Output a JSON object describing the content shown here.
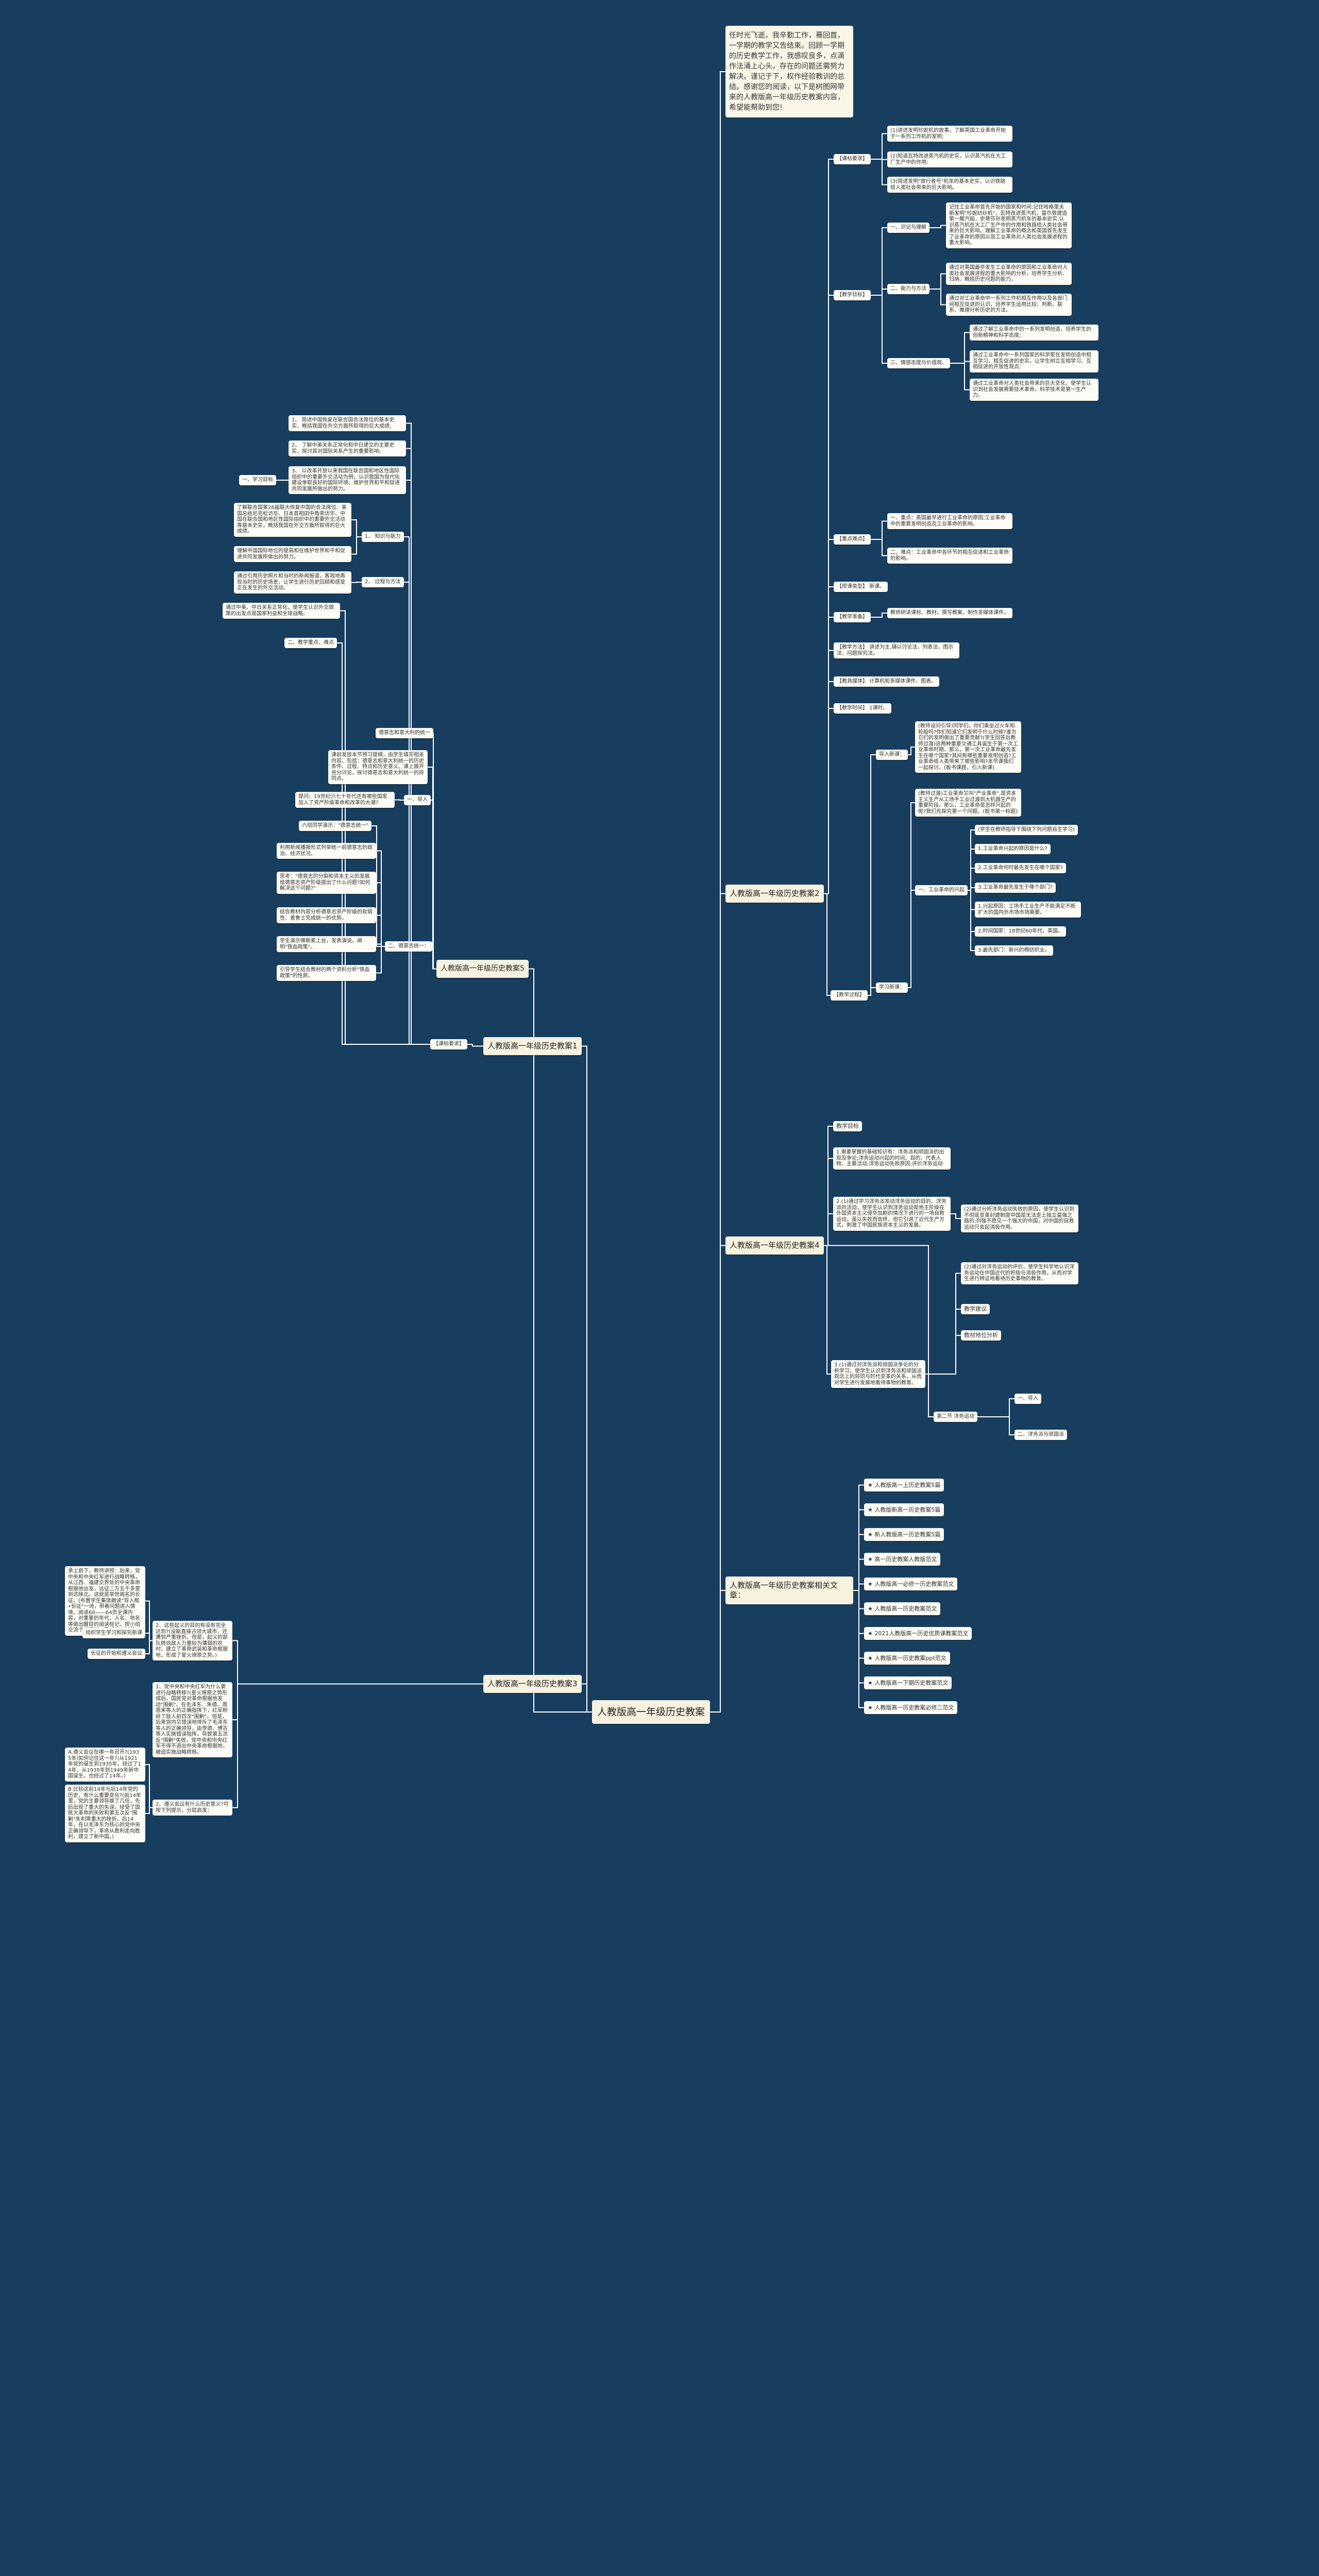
{
  "colors": {
    "background": "#183e5f",
    "node": "#fdfcf6",
    "main_node": "#f7f2e0",
    "line": "#ffffff"
  },
  "nodes": {
    "center": "人教版高一年级历史教案",
    "intro": "任时光飞逝，我辛勤工作，蓦回首，一学期的教学又告结束。回顾一学期的历史教学工作，我感叹良多，点滴作法涌上心头，存在的问题还需努力解决。谨记于下，权作经验教训的总结。感谢您的阅读，以下是树图网带来的人教版高一年级历史教案内容，希望能帮助到您!",
    "b1": "人教版高一年级历史教案1",
    "b2": "人教版高一年级历史教案2",
    "b3": "人教版高一年级历史教案3",
    "b4": "人教版高一年级历史教案4",
    "b5": "人教版高一年级历史教案5",
    "brel": "人教版高一年级历史教案相关文章：",
    "k1": "【课标要求】",
    "k1a": "(1)讲述发明珍妮机的故事，了解英国工业革命开始于一系列工作机的发明;",
    "k1b": "(2)知道瓦特改进蒸汽机的史实，认识蒸汽机在大工厂生产中的作用;",
    "k1c": "(3)简述发明\"旅行者号\"机车的基本史实，认识铁路给人类社会带来的巨大影响。",
    "k2": "【教学目标】",
    "k2a": "一、识记与理解",
    "k2a1": "记住工业革命首先开始的国家和时间;记住哈格里夫斯发明\"珍妮纺纱机\"，瓦特改进蒸汽机，富尔敦建造第一艘汽船，史蒂芬孙发明蒸汽机车的基本史实;认识蒸汽机在大工厂生产中的作用和铁路给人类社会带来的巨大影响。理解工业革命的概念和英国首先发生了业革命的原因以及工业革命对人类社会发展进程的重大影响。",
    "k2b": "二、能力与方法",
    "k2b1": "通过对英国最早发生工业革命的原因和工业革命对人类社会发展进程的重大影响的分析，培养学生分析、归纳、概括历史问题的能力。",
    "k2b2": "通过对工业革命中一系列工作机相互作用以及各部门间相互促进的认识，培养学生运用比较、判断、联系、推理分析历史的方法。",
    "k2c": "三、情感态度与价值观、",
    "k2c1": "通过了解工业革命中的一系列发明创造，培养学生的创新精神和科学态度;",
    "k2c2": "通过工业革命中一系列国家的科学家在发明创造中相互学习，相互促进的史实，让学生树立互相学习、互相促进的开放性观点;",
    "k2c3": "通过工业革命对人类社会带来的巨大变化，使学生认识到社会发展需要技术革命，科学技术是第一生产力。",
    "k3": "【重点难点】",
    "k3a": "一、重点：英国最早进行工业革命的原因;工业革命中的重要发明创造及工业革命的影响。",
    "k3b": "二、难点：工业革命中各环节的相互促进和工业革命的影响。",
    "k4": "【授课类型】 新课。",
    "k5": "【教学准备】",
    "k5a": "教师研读课标、教材，撰写教案，制作多媒体课件。",
    "k6": "【教学方法】 讲述为主,辅以讨论法、列表法、图示法、问题探究法。",
    "k7": "【教具媒体】 计算机和多媒体课件、图表。",
    "k8": "【教学时间】 1课时。",
    "k9": "【教学过程】",
    "k9a": "导入新课：",
    "k9a1": "(教师设问引导)同学们，你们乘坐过火车和轮船吗?你们知道它们发明于什么时候?谁为它们的发明做出了重要贡献?(学生回答后教师过渡)这两种重要交通工具诞生于第一次工业革命时期。那么，第一次工业革命最先发生在哪个国家?其间有哪些重要发明创造?工业革命给人类带来了哪些影响?本节课我们一起探讨。(板书课题，引入新课)",
    "k9b": "学习新课：",
    "k9b1": "(教师过渡)工业革命又叫\"产业革命\",是资本主义生产从工场手工业过渡到大机器生产的重要阶段。那么，工业革命是怎样兴起的呢?我们先探究第一个问题。(板书第一标题)",
    "k9b2": "一、工业革命的兴起",
    "q0": "(学生在教师指导下围绕下列问题自主学习)",
    "q1": "1.工业革命兴起的原因是什么?",
    "q2": "2.工业革命何时最先发生在哪个国家?",
    "q3": "3.工业革命最先发生于哪个部门?",
    "a1": "1.兴起原因：工场手工业生产不能满足不断扩大的国内外市场市场需要。",
    "a2": "2.时间国家：18世纪60年代，英国。",
    "a3": "3.最先部门：新兴的棉纺织业。",
    "m1": "教学目标",
    "m2": "1.需要掌握的基础知识有：洋务派和顽固派的出现及争论;洋务运动兴起的时间、目的、代表人物、主要活动;洋务运动失败原因;评价洋务运动",
    "m3": "2.(1)通过学习洋务派发动洋务运动的目的、洋务派的活动，使学生认识到洋务运动是地主阶级在外国资本主义侵华加剧的情况下进行的一场自救运动，虽以失败而告终，但它引进了近代生产方式，刺激了中国民族资本主义的发展。",
    "m3a": "(2)通过分析洋务运动失败的原因，使学生认识到不彻底变革封建制度中国是无法走上独立富强之路的;列强不愿见一个强大的中国，对中国的自救运动只会起消极作用。",
    "m4": "3.(1)通过对洋务派和顽固派争论的分析学习，使学生认识到洋务派和顽固派观念上的异同与时代变革的关系，从而对学生进行发展地看待事物的教育。",
    "m4a": "(2)通过对洋务运动的评价，使学生科学地认识洋务运动在中国近代的积极与消极作用，从而对学生进行辨证地看待历史事物的教育。",
    "m4b": "教学建议",
    "m4c": "教材地位分析",
    "m5": "第二节 洋务运动",
    "m5a": "一、导入",
    "m5b": "二、洋务派与顽固派",
    "n0": "【课标要求】",
    "n1": "1、 简述中国恢复在联合国合法席位的基本史实，概括我国在外交方面所取得的巨大成绩;",
    "n2": "2、 了解中美关系正常化和中日建交的主要史实，探讨其对国际关系产生的重要影响;",
    "n3": "3、 以改革开放以来我国在联合国和地区性国际组织中的重要外交活动为例，认识我国为现代化建设争取良好的国际环境、维护世界和平和促进共同发展所做出的努力。",
    "n3a": "一、学习目标",
    "n4": "1、 知识与能力",
    "n4a": "了解联合国第26届联大恢复中国的合法席位、美国总统尼克松访华、日本首相田中角荣访华、中国在联合国和地区性国际组织中的重要外交活动等基本史实，概括我国在外交方面所取得的巨大成绩。",
    "n4b": "理解中国国际地位的提高和在维护世界和平和促进共同发展所做出的努力。",
    "n5": "2、 过程与方法",
    "n5a": "通过引用历史照片和当时的新闻报道，客观地再现当时的历史场景，让学生进行历史回顾和感受正在发生的外交活动。",
    "n6": "通过中美、中日关系正常化，使学生认识外交政策的出发点是国家利益和全球战略。",
    "n7": "二、教学重点、难点",
    "p1": "2、这些起义的目的有没有完全达到?(没能直接占领大城市，还遭到严重挫折。但是，起义的部队转向敌人力量较为薄弱的农村，建立了革命武装和革命根据地，形成了星火燎原之势。)",
    "p1a": "承上启下，教师讲授：后来，党中央和中央红军进行战略转移，从江西、福建交界处的中央革命根据地出发，远征二万五千多里到达陕北。这就是举世闻名的长征。(布置学生集体朗读\"导入框•长征\"一诗，带着问题进入情境，阅读60——64页全课内容，对重要的年代、人名、地名等做出醒目的阅读标记，按小组交流个人看法，要求人人过关。)",
    "p1b": "组织学生学习和探究新课",
    "p1c": "长征的开始和遵义会议",
    "p2": "1、党中央和中央红军为什么要进行战略转移?(星火燎原之势形成后，国民党对革命根据地发动\"围剿\"。在毛泽东、朱德、周恩来等人的正确指挥下，红军粉碎了敌人前四次\"围剿\"。但是，后来党内又错误地排斥了毛泽东等人的正确领导，由李德、博古等人实施错误指挥，导致第五次反\"围剿\"失败，党中央和中央红军不得不退出中央革命根据地，被迫实施战略转移。",
    "p3": "2、遵义会议有什么历史意义?可按下列提示，分层启发：",
    "p3a": "A.遵义会议在哪一年召开?(1935年)如何记住这一年?(从1921年党的诞生到1935年，经过了14年，从1935年到1949年新中国诞生，也经过了14年。)",
    "p3b": "B.比较这前14年与后14年党的历史，有什么重要变化?(前14年里，党的主要领导换了几任，先后出现了重大的失误，经受了国民大革命的失败和第五次反\"围剿\"失利等重大的挫折。后14年，在以毛泽东为核心的党中央正确领导下，革命从胜利走向胜利，建立了新中国。)",
    "r1": "德意志和意大利的统一",
    "r2": "课前发放本节预习提纲，由学生填写相关内容。包括：德意志和意大利统一的历史条件、过程、特点和历史意义。课上展开充分讨论，探讨德意志和意大利统一的异同点。",
    "r3": "一、导入",
    "r3a": "提问：19世纪六七十年代还有哪些国家加入了资产阶级革命和改革的大潮?",
    "r4": "二、德意志统一：",
    "r4a": "六组同学演示：\"德意志统一\"",
    "r4b": "利用新闻播报形式列举统一前德意志的政治、经济状况。",
    "r4c": "思考：\"德意志的分裂和资本主义的发展给德意志资产阶级提出了什么问题?如何解决这个问题?\"",
    "r4d": "结合教材内容分析德意志资产阶级的软弱性、普鲁士完成统一的优势。",
    "r4e": "学生演示俾斯麦上台，发表演说，阐明\"铁血政策\"。",
    "r4f": "引导学生结合教材的两个资料分析\"铁血政策\"的性质。",
    "rel0": "★ 人教版高一上历史教案5篇",
    "rel1": "★ 人教版新高一历史教案5篇",
    "rel2": "★ 新人教版高一历史教案5篇",
    "rel3": "★ 高一历史教案人教版范文",
    "rel4": "★ 人教版高一必修一历史教案范文",
    "rel5": "★ 人教版高一历史教案范文",
    "rel6": "★ 2021人教版高一历史优质课教案范文",
    "rel7": "★ 人教版高一历史教案ppt范文",
    "rel8": "★ 人教版高一下期历史教案范文",
    "rel9": "★ 人教版高一历史教案必修二范文"
  }
}
